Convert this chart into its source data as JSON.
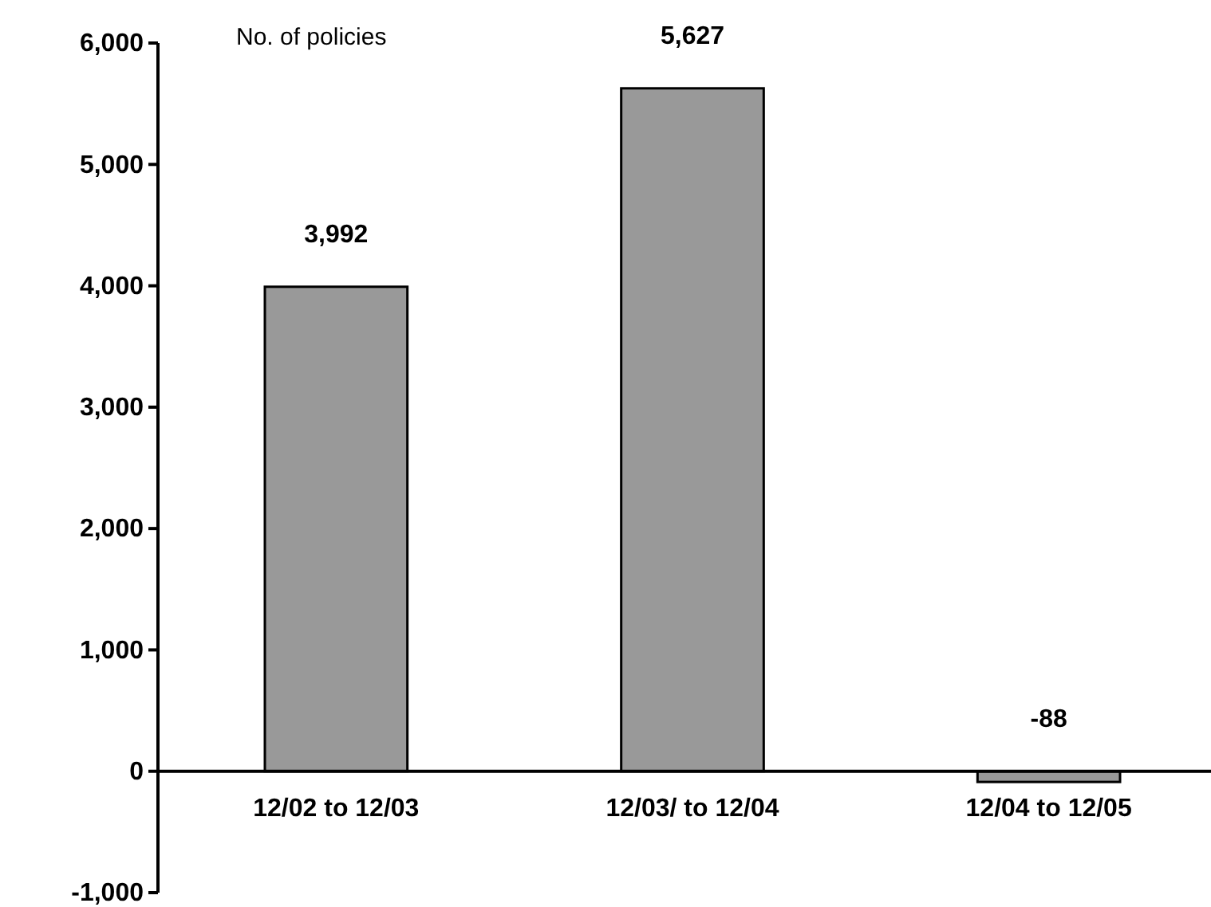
{
  "chart_data": {
    "type": "bar",
    "ylabel": "No. of policies",
    "categories": [
      "12/02 to 12/03",
      "12/03/ to 12/04",
      "12/04 to 12/05"
    ],
    "values": [
      3992,
      5627,
      -88
    ],
    "value_labels": [
      "3,992",
      "5,627",
      "-88"
    ],
    "color": "#999999",
    "ylim": [
      -1000,
      6000
    ],
    "yticks": [
      {
        "value": -1000,
        "label": "-1,000"
      },
      0,
      {
        "value": 1000,
        "label": "1,000"
      },
      {
        "value": 2000,
        "label": "2,000"
      },
      {
        "value": 3000,
        "label": "3,000"
      },
      {
        "value": 4000,
        "label": "4,000"
      },
      {
        "value": 5000,
        "label": "5,000"
      },
      {
        "value": 6000,
        "label": "6,000"
      }
    ],
    "grid": false
  }
}
